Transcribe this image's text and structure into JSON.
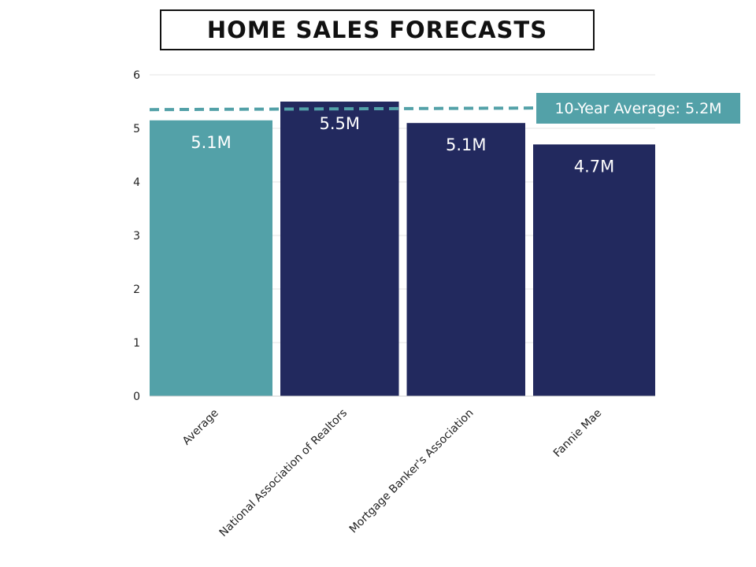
{
  "title": "HOME SALES FORECASTS",
  "colors": {
    "average_bar": "#53a1a8",
    "forecast_bar": "#22295e",
    "reference_line": "#53a1a8",
    "gridline": "#e6e6e6"
  },
  "chart_data": {
    "type": "bar",
    "title": "HOME SALES FORECASTS",
    "xlabel": "",
    "ylabel": "",
    "ylim": [
      0,
      6
    ],
    "yticks": [
      0,
      1,
      2,
      3,
      4,
      5,
      6
    ],
    "grid": true,
    "categories": [
      "Average",
      "National Association of Realtors",
      "Mortgage Banker's Association",
      "Fannie Mae"
    ],
    "values": [
      5.15,
      5.5,
      5.1,
      4.7
    ],
    "data_labels": [
      "5.1M",
      "5.5M",
      "5.1M",
      "4.7M"
    ],
    "reference_line": {
      "label": "10-Year Average: 5.2M",
      "y_start": 5.35,
      "y_end": 5.38,
      "style": "dashed"
    }
  }
}
